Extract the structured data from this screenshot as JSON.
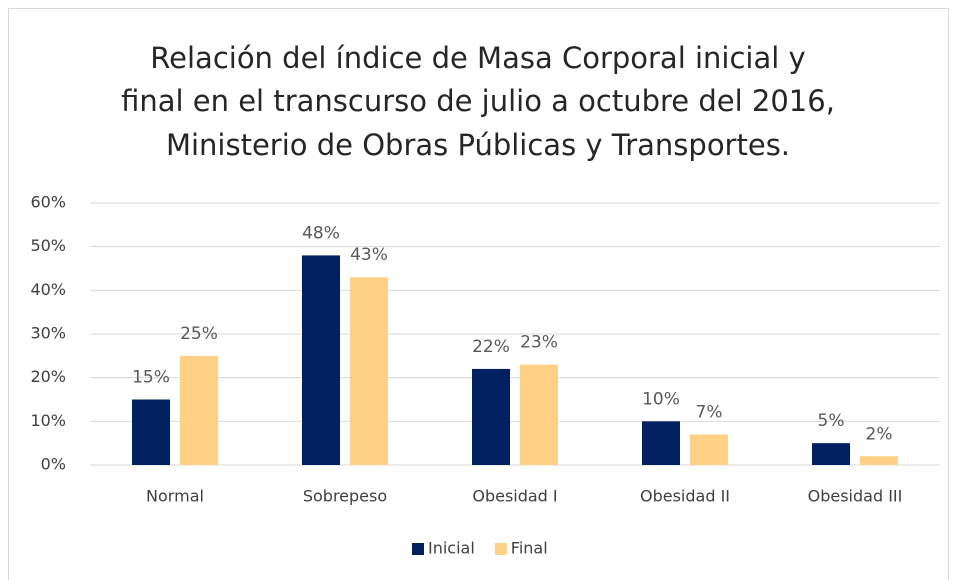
{
  "chart_data": {
    "type": "bar",
    "title": [
      "Relación del índice de Masa Corporal inicial y",
      "final en el transcurso de julio a octubre del 2016,",
      "Ministerio de Obras Públicas y Transportes."
    ],
    "categories": [
      "Normal",
      "Sobrepeso",
      "Obesidad I",
      "Obesidad II",
      "Obesidad III"
    ],
    "series": [
      {
        "name": "Inicial",
        "color": "#002060",
        "values": [
          15,
          48,
          22,
          10,
          5
        ],
        "value_labels": [
          "15%",
          "48%",
          "22%",
          "10%",
          "5%"
        ]
      },
      {
        "name": "Final",
        "color": "#ffd187",
        "values": [
          25,
          43,
          23,
          7,
          2
        ],
        "value_labels": [
          "25%",
          "43%",
          "23%",
          "7%",
          "2%"
        ]
      }
    ],
    "ylim": [
      0,
      60
    ],
    "yticks": [
      {
        "value": 0,
        "label": "0%"
      },
      {
        "value": 10,
        "label": "10%"
      },
      {
        "value": 20,
        "label": "20%"
      },
      {
        "value": 30,
        "label": "30%"
      },
      {
        "value": 40,
        "label": "40%"
      },
      {
        "value": 50,
        "label": "50%"
      },
      {
        "value": 60,
        "label": "60%"
      }
    ],
    "grid": true,
    "legend": "bottom"
  }
}
